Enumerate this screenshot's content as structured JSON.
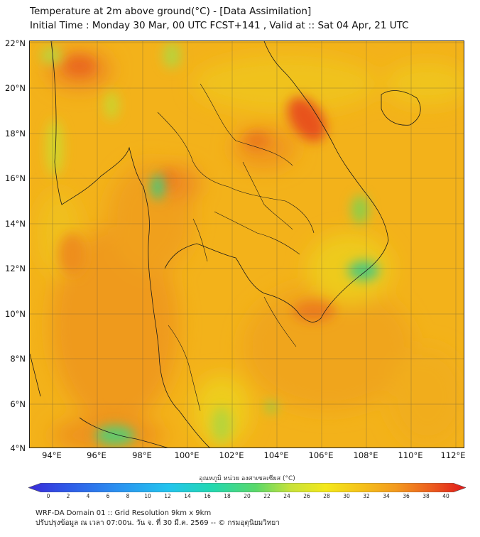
{
  "title": {
    "line1": "Temperature at 2m above ground(°C) - [Data Assimilation]",
    "line2": "Initial Time : Monday 30 Mar, 00 UTC FCST+141 , Valid at :: Sat 04 Apr, 21 UTC"
  },
  "map": {
    "lat_labels": [
      "22°N",
      "20°N",
      "18°N",
      "16°N",
      "14°N",
      "12°N",
      "10°N",
      "8°N",
      "6°N",
      "4°N"
    ],
    "lon_labels": [
      "94°E",
      "96°E",
      "98°E",
      "100°E",
      "102°E",
      "104°E",
      "106°E",
      "108°E",
      "110°E",
      "112°E"
    ],
    "lat_range": [
      4,
      22
    ],
    "lon_range": [
      93,
      112.4
    ],
    "field": "temperature",
    "grid": true
  },
  "colorbar": {
    "title": "อุณหภูมิ หน่วย องศาเซลเซียส (°C)",
    "ticks": [
      "0",
      "2",
      "4",
      "6",
      "8",
      "10",
      "12",
      "14",
      "16",
      "18",
      "20",
      "22",
      "24",
      "26",
      "28",
      "30",
      "32",
      "34",
      "36",
      "38",
      "40"
    ],
    "range": [
      0,
      40
    ]
  },
  "footer": {
    "line1": "WRF-DA Domain 01 :: Grid Resolution 9km x 9km",
    "line2": "ปรับปรุงข้อมูล ณ เวลา 07:00น. วัน จ. ที่ 30 มี.ค. 2569 -- © กรมอุตุนิยมวิทยา"
  },
  "colors": {
    "hot": "#e8421c",
    "warm": "#f08a1e",
    "base": "#f3b21a",
    "mild": "#eed11a",
    "cool": "#9fd43a",
    "cooler": "#39cc7e"
  }
}
